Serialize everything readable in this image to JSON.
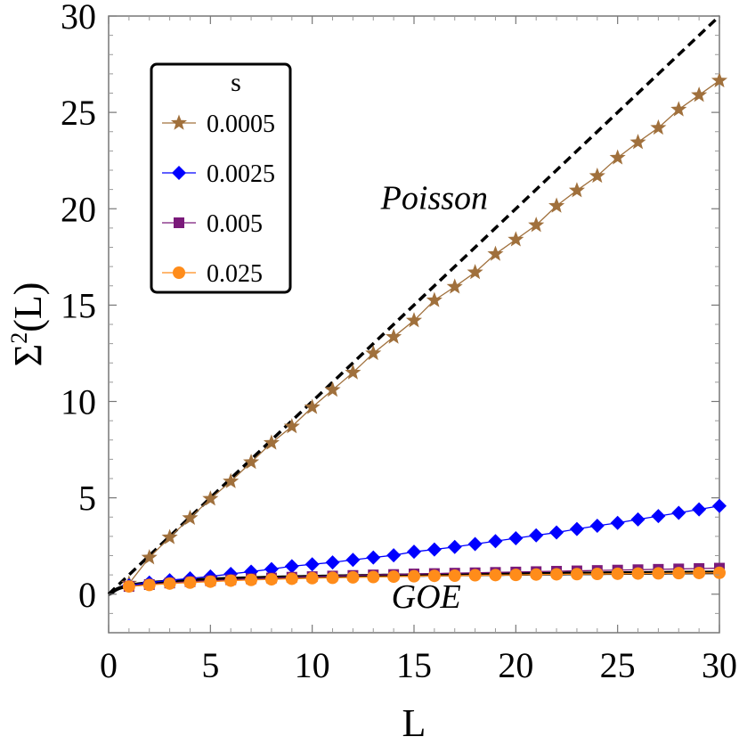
{
  "chart_data": {
    "type": "line",
    "title": "",
    "xlabel": "L",
    "ylabel_main": "Σ",
    "ylabel_sup": "2",
    "ylabel_rest": "(L)",
    "xlim": [
      0,
      30
    ],
    "ylim": [
      -2,
      30
    ],
    "xticks": [
      0,
      5,
      10,
      15,
      20,
      25,
      30
    ],
    "yticks": [
      0,
      5,
      10,
      15,
      20,
      25,
      30
    ],
    "grid": false,
    "legend": {
      "title": "s",
      "placement": "top-left"
    },
    "x": [
      1,
      2,
      3,
      4,
      5,
      6,
      7,
      8,
      9,
      10,
      11,
      12,
      13,
      14,
      15,
      16,
      17,
      18,
      19,
      20,
      21,
      22,
      23,
      24,
      25,
      26,
      27,
      28,
      29,
      30
    ],
    "series": [
      {
        "name": "0.0005",
        "color": "#a0703c",
        "marker": "star",
        "values": [
          0.55,
          1.9,
          2.95,
          3.95,
          4.95,
          5.85,
          6.85,
          7.85,
          8.7,
          9.7,
          10.6,
          11.5,
          12.5,
          13.35,
          14.2,
          15.25,
          15.95,
          16.7,
          17.65,
          18.4,
          19.15,
          20.15,
          20.95,
          21.7,
          22.65,
          23.45,
          24.2,
          25.15,
          25.9,
          26.65
        ]
      },
      {
        "name": "0.0025",
        "color": "#0000ff",
        "marker": "diamond",
        "values": [
          0.45,
          0.6,
          0.72,
          0.82,
          0.92,
          1.05,
          1.17,
          1.3,
          1.45,
          1.55,
          1.65,
          1.78,
          1.9,
          2.02,
          2.2,
          2.32,
          2.45,
          2.6,
          2.75,
          2.9,
          3.05,
          3.2,
          3.38,
          3.55,
          3.7,
          3.88,
          4.05,
          4.22,
          4.4,
          4.58
        ]
      },
      {
        "name": "0.005",
        "color": "#7a1a7a",
        "marker": "square",
        "values": [
          0.4,
          0.5,
          0.58,
          0.65,
          0.7,
          0.75,
          0.8,
          0.84,
          0.88,
          0.91,
          0.94,
          0.97,
          1.0,
          1.02,
          1.05,
          1.07,
          1.09,
          1.11,
          1.13,
          1.15,
          1.17,
          1.19,
          1.21,
          1.23,
          1.25,
          1.27,
          1.29,
          1.31,
          1.33,
          1.35
        ]
      },
      {
        "name": "0.025",
        "color": "#ff8c1a",
        "marker": "circle",
        "values": [
          0.4,
          0.48,
          0.55,
          0.6,
          0.65,
          0.7,
          0.74,
          0.77,
          0.8,
          0.83,
          0.85,
          0.87,
          0.89,
          0.91,
          0.93,
          0.95,
          0.96,
          0.98,
          0.99,
          1.0,
          1.02,
          1.03,
          1.04,
          1.05,
          1.06,
          1.07,
          1.08,
          1.09,
          1.1,
          1.11
        ]
      }
    ],
    "reference_lines": [
      {
        "name": "Poisson",
        "style": "dashed",
        "color": "#000000",
        "type": "linear",
        "slope": 1
      },
      {
        "name": "GOE",
        "style": "solid+dashed",
        "color": "#000000",
        "type": "goe"
      }
    ],
    "annotations": [
      {
        "text": "Poisson",
        "x": 16,
        "y": 20
      },
      {
        "text": "GOE",
        "x": 15.6,
        "y": -0.7
      }
    ]
  }
}
